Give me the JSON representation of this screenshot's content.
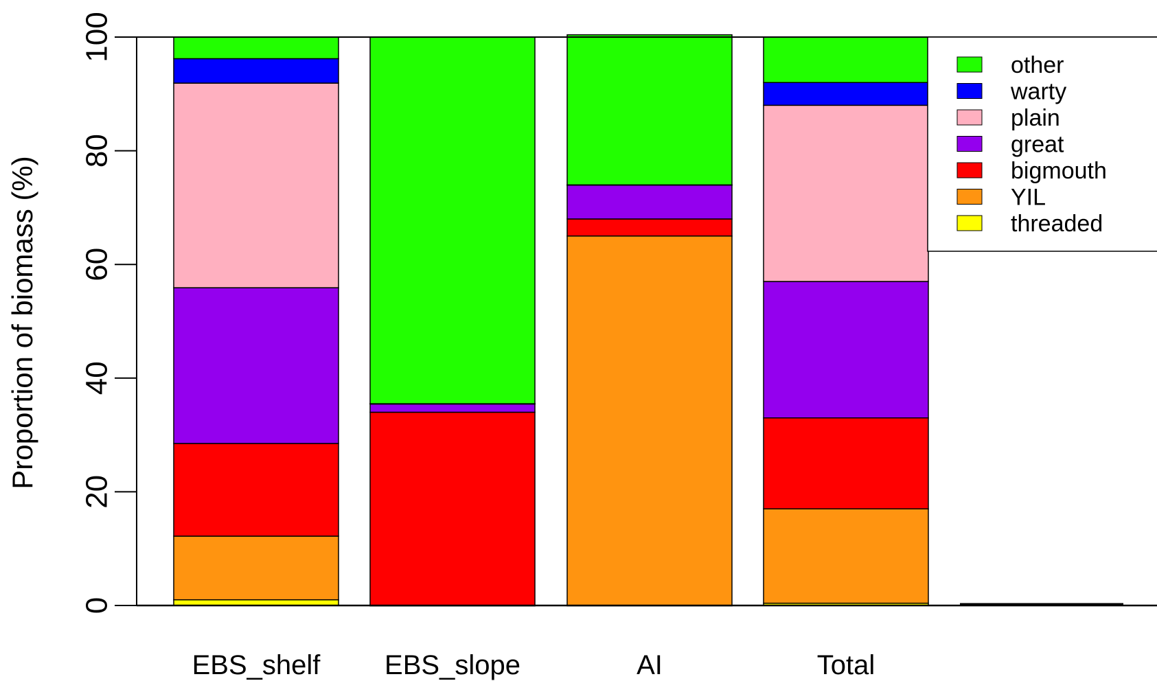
{
  "chart_data": {
    "type": "bar",
    "stacked": true,
    "categories": [
      "EBS_shelf",
      "EBS_slope",
      "AI",
      "Total"
    ],
    "ylabel": "Proportion of biomass (%)",
    "xlabel": "",
    "ylim": [
      0,
      100
    ],
    "yticks": [
      0,
      20,
      40,
      60,
      80,
      100
    ],
    "grid": false,
    "legend_position": "top-right",
    "series": [
      {
        "name": "threaded",
        "color": "#ffff00",
        "values": [
          1.0,
          0.0,
          0.0,
          0.4
        ]
      },
      {
        "name": "YIL",
        "color": "#ff9410",
        "values": [
          11.2,
          0.0,
          65.0,
          16.6
        ]
      },
      {
        "name": "bigmouth",
        "color": "#ff0000",
        "values": [
          16.3,
          34.0,
          3.0,
          16.0
        ]
      },
      {
        "name": "great",
        "color": "#9400ee",
        "values": [
          27.4,
          1.5,
          6.0,
          24.0
        ]
      },
      {
        "name": "plain",
        "color": "#ffb0c0",
        "values": [
          36.0,
          0.0,
          0.0,
          31.0
        ]
      },
      {
        "name": "warty",
        "color": "#0000ff",
        "values": [
          4.3,
          0.0,
          0.0,
          4.0
        ]
      },
      {
        "name": "other",
        "color": "#22ff00",
        "values": [
          3.8,
          64.5,
          26.4,
          8.0
        ]
      }
    ],
    "legend_order": [
      "other",
      "warty",
      "plain",
      "great",
      "bigmouth",
      "YIL",
      "threaded"
    ]
  }
}
